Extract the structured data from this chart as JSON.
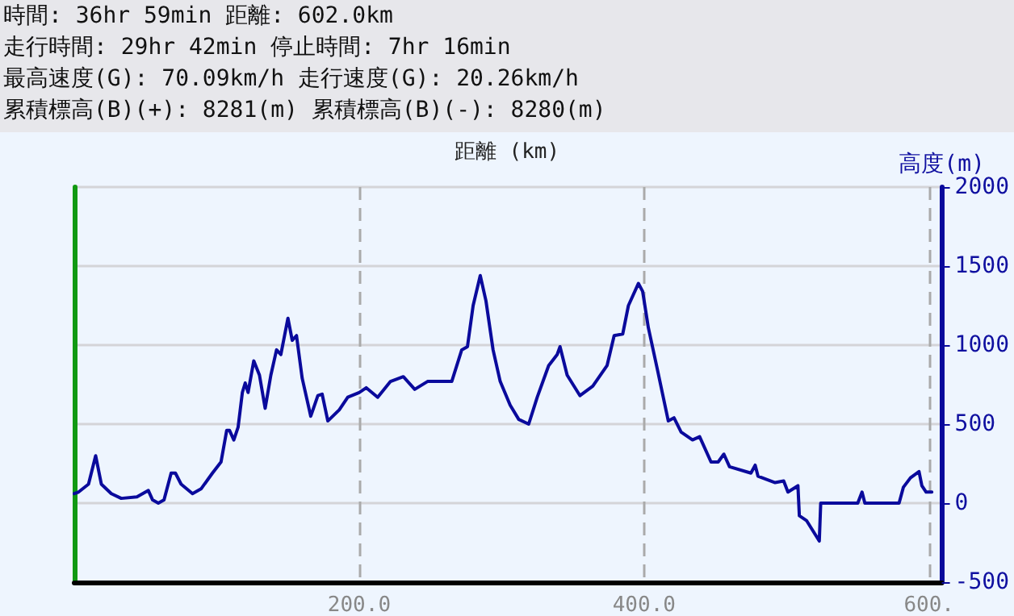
{
  "chart_data": {
    "type": "line",
    "annotations": [
      "時間: 36hr 59min 距離: 602.0km",
      "走行時間: 29hr 42min 停止時間: 7hr 16min",
      "最高速度(G): 70.09km/h 走行速度(G): 20.26km/h",
      "累積標高(B)(+): 8281(m) 累積標高(B)(-): 8280(m)"
    ],
    "xlabel": "距離 (km)",
    "ylabel": "高度(m)",
    "x": [
      0,
      3,
      10,
      15,
      19,
      26,
      33,
      44,
      52,
      55,
      59,
      63,
      68,
      71,
      75,
      83,
      89,
      97,
      103,
      107,
      109,
      112,
      115,
      118,
      120,
      122,
      126,
      130,
      134,
      138,
      142,
      145,
      150,
      153,
      156,
      160,
      166,
      171,
      174,
      178,
      186,
      192,
      200,
      205,
      213,
      222,
      231,
      239,
      248,
      265,
      272,
      276,
      280,
      285,
      289,
      294,
      299,
      306,
      312,
      319,
      325,
      333,
      339,
      341,
      346,
      355,
      364,
      374,
      379,
      385,
      389,
      396,
      399,
      403,
      409,
      417,
      421,
      426,
      434,
      439,
      447,
      452,
      456,
      460,
      475,
      478,
      480,
      492,
      498,
      501,
      508,
      509,
      514,
      523,
      524,
      550,
      553,
      555,
      579,
      582,
      587,
      593,
      595,
      598,
      602
    ],
    "series": [
      {
        "color": "#0a0a9c",
        "values": [
          60,
          70,
          120,
          300,
          120,
          60,
          30,
          40,
          80,
          20,
          0,
          20,
          190,
          190,
          120,
          60,
          90,
          190,
          260,
          460,
          460,
          400,
          480,
          700,
          760,
          700,
          900,
          810,
          600,
          810,
          970,
          940,
          1170,
          1030,
          1060,
          790,
          550,
          680,
          690,
          520,
          590,
          670,
          700,
          730,
          670,
          770,
          800,
          720,
          770,
          770,
          970,
          990,
          1250,
          1440,
          1280,
          970,
          770,
          620,
          530,
          500,
          670,
          870,
          940,
          990,
          810,
          680,
          740,
          870,
          1060,
          1070,
          1250,
          1390,
          1340,
          1110,
          860,
          520,
          540,
          450,
          400,
          420,
          260,
          260,
          310,
          230,
          190,
          240,
          170,
          130,
          140,
          70,
          110,
          -80,
          -110,
          -240,
          0,
          0,
          70,
          0,
          0,
          100,
          160,
          200,
          110,
          70,
          70
        ]
      }
    ],
    "xlim": [
      0,
      609
    ],
    "xticks": [
      {
        "value": 200,
        "label": "200.0"
      },
      {
        "value": 400,
        "label": "400.0"
      },
      {
        "value": 600,
        "label": "600."
      }
    ],
    "ylim": [
      -500,
      2000
    ],
    "yticks": [
      -500,
      0,
      500,
      1000,
      1500,
      2000
    ],
    "grid": true,
    "marker": "none",
    "line_style": "solid"
  }
}
